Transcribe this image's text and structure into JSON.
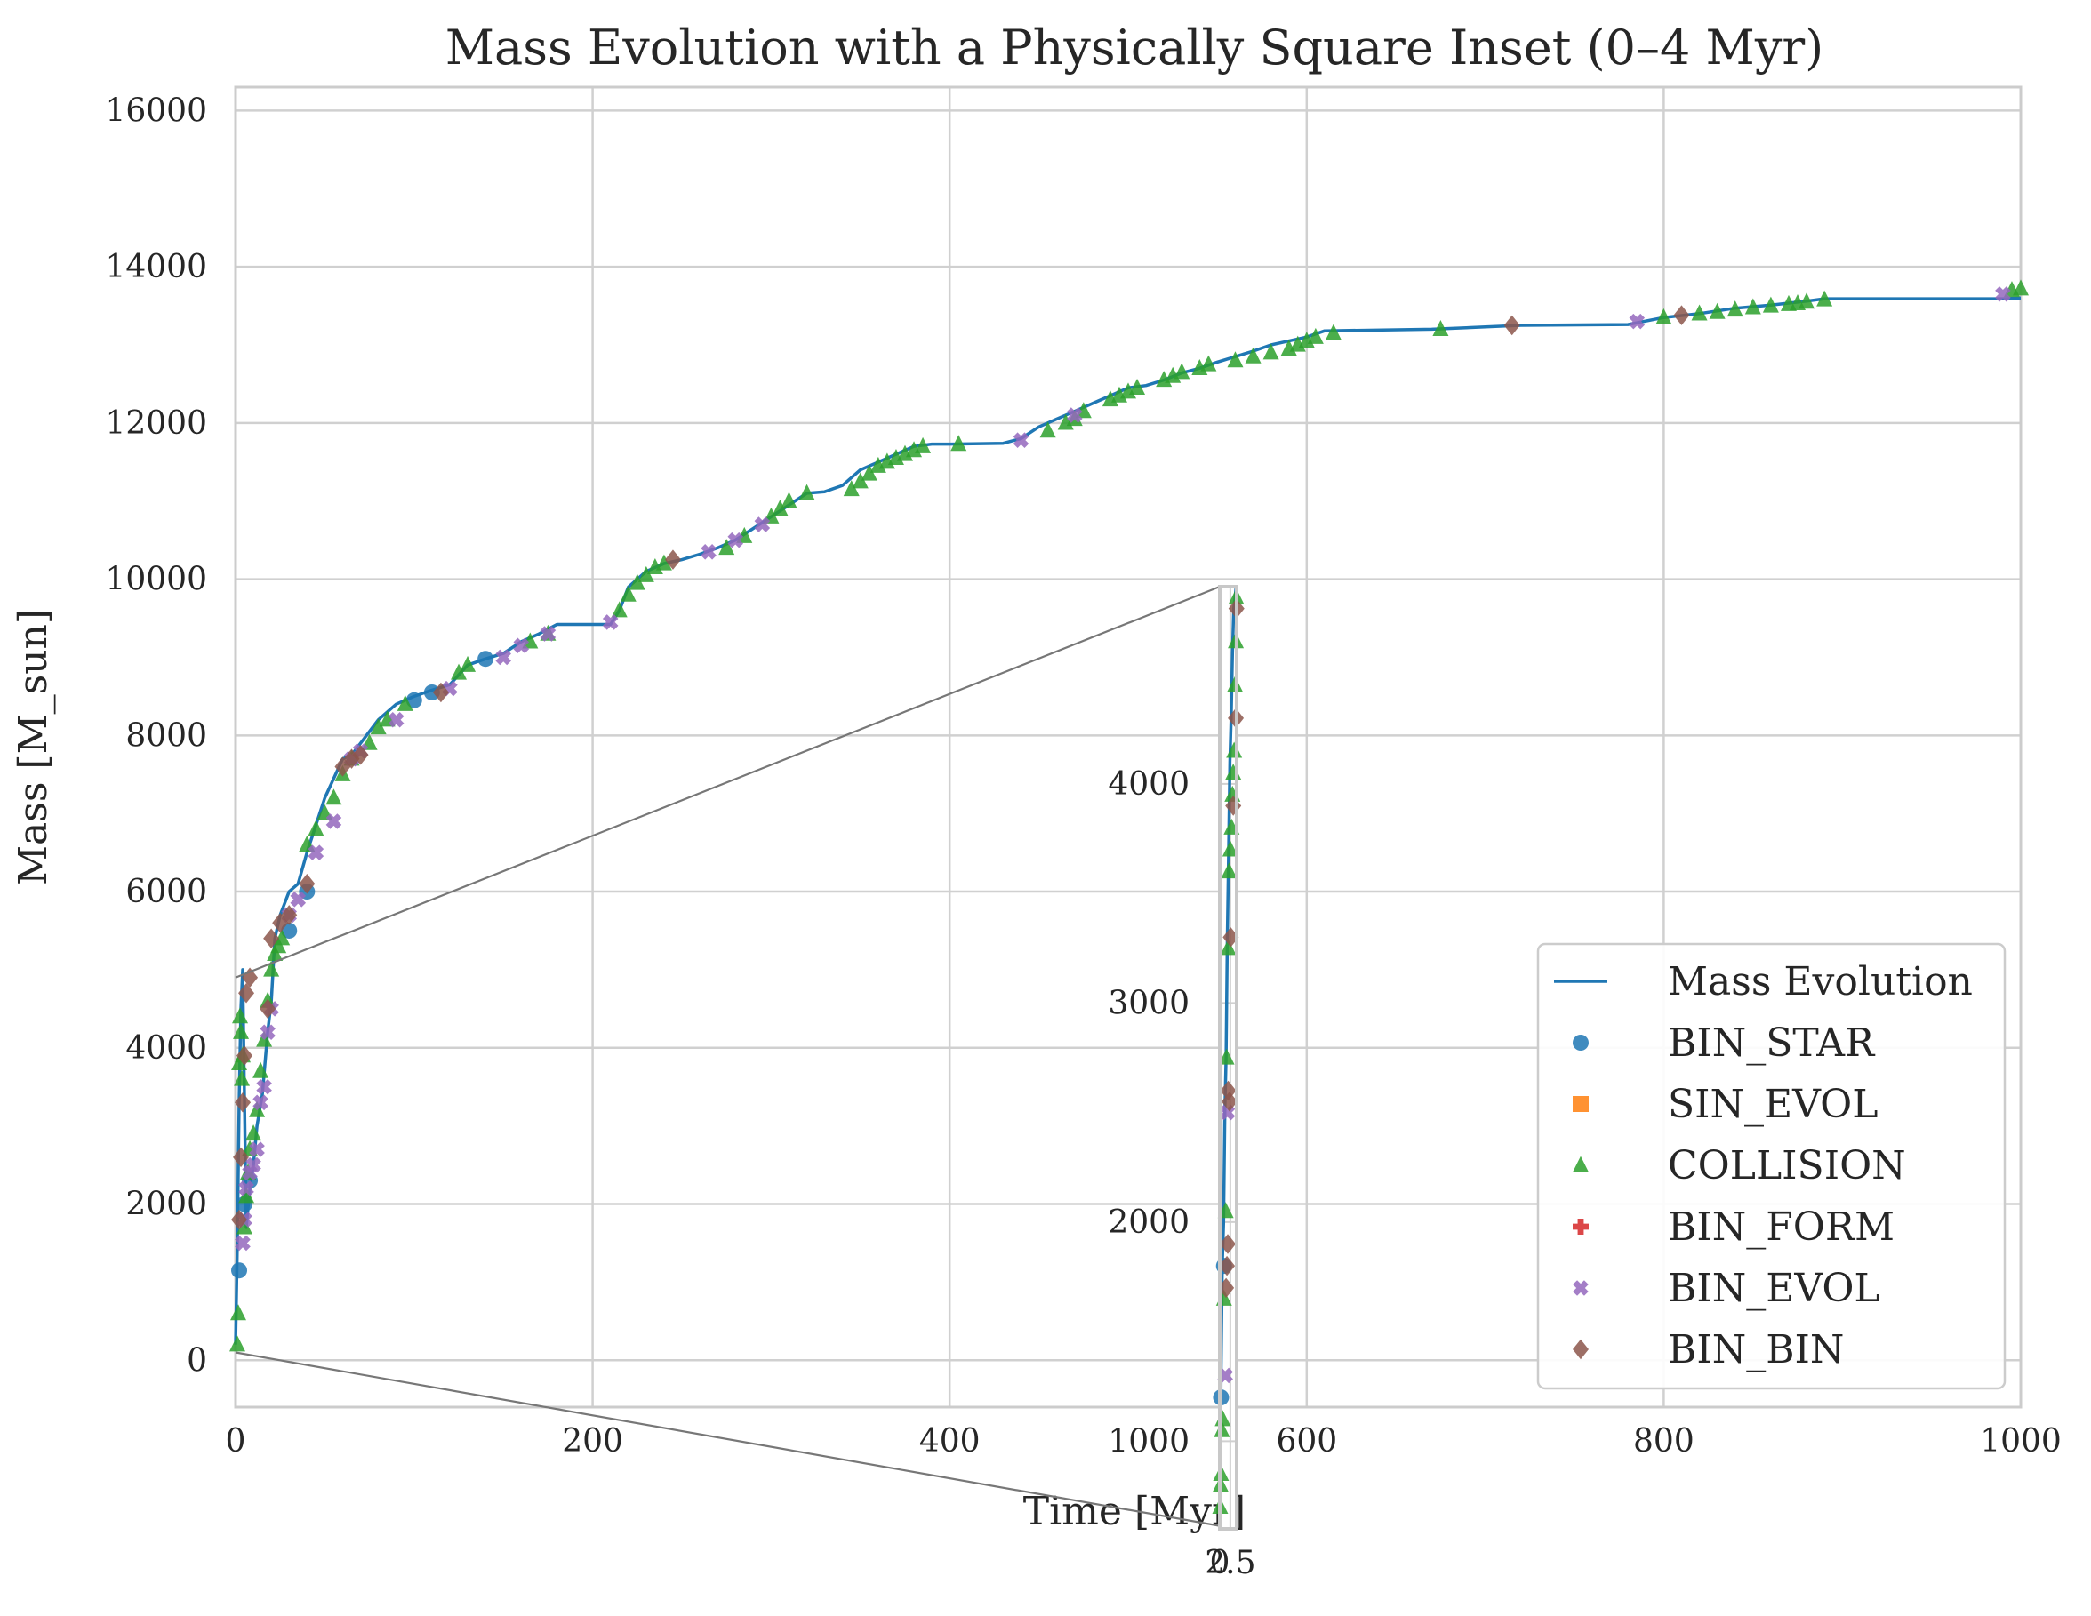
{
  "chart_data": {
    "type": "scatter",
    "title": "Mass Evolution with a Physically Square Inset (0–4 Myr)",
    "xlabel": "Time [Myr]",
    "ylabel": "Mass [M_sun]",
    "xlim": [
      0,
      1000
    ],
    "ylim": [
      -600,
      16300
    ],
    "xticks": [
      0,
      200,
      400,
      600,
      800,
      1000
    ],
    "yticks": [
      0,
      2000,
      4000,
      6000,
      8000,
      10000,
      12000,
      14000,
      16000
    ],
    "grid": true,
    "legend_position": "lower-right",
    "colors": {
      "Mass Evolution": "#1f77b4",
      "BIN_STAR": "#1f77b4",
      "SIN_EVOL": "#ff7f0e",
      "COLLISION": "#2ca02c",
      "BIN_FORM": "#d62728",
      "BIN_EVOL": "#9467bd",
      "BIN_BIN": "#8c564b"
    },
    "legend": [
      "Mass Evolution",
      "BIN_STAR",
      "SIN_EVOL",
      "COLLISION",
      "BIN_FORM",
      "BIN_EVOL",
      "BIN_BIN"
    ],
    "line": {
      "name": "Mass Evolution",
      "x": [
        0,
        1,
        2,
        3,
        4,
        6,
        8,
        10,
        12,
        15,
        18,
        20,
        22,
        25,
        30,
        35,
        40,
        50,
        60,
        65,
        70,
        80,
        90,
        100,
        110,
        120,
        130,
        140,
        150,
        160,
        170,
        180,
        210,
        215,
        220,
        230,
        240,
        250,
        260,
        270,
        280,
        290,
        300,
        310,
        320,
        330,
        340,
        350,
        360,
        370,
        380,
        390,
        400,
        430,
        440,
        450,
        460,
        470,
        480,
        490,
        500,
        510,
        520,
        530,
        540,
        550,
        560,
        570,
        580,
        590,
        600,
        610,
        670,
        720,
        780,
        800,
        820,
        840,
        860,
        880,
        890,
        990,
        1000
      ],
      "y": [
        200,
        1500,
        3300,
        4500,
        5000,
        1700,
        2200,
        2500,
        3000,
        3400,
        4200,
        4600,
        5400,
        5700,
        6000,
        6100,
        6500,
        7200,
        7700,
        7750,
        7900,
        8200,
        8400,
        8500,
        8580,
        8650,
        8900,
        8980,
        9050,
        9200,
        9300,
        9420,
        9420,
        9600,
        9900,
        10100,
        10200,
        10250,
        10320,
        10400,
        10500,
        10650,
        10800,
        10950,
        11100,
        11120,
        11200,
        11400,
        11500,
        11600,
        11700,
        11730,
        11730,
        11740,
        11800,
        11950,
        12050,
        12150,
        12250,
        12350,
        12450,
        12480,
        12550,
        12640,
        12700,
        12780,
        12850,
        12920,
        13000,
        13050,
        13100,
        13180,
        13200,
        13250,
        13260,
        13350,
        13400,
        13470,
        13510,
        13560,
        13590,
        13590,
        13600
      ]
    },
    "series": [
      {
        "name": "BIN_STAR",
        "marker": "circle",
        "x": [
          2,
          5,
          8,
          30,
          40,
          100,
          110,
          140
        ],
        "y": [
          1150,
          2000,
          2300,
          5500,
          6000,
          8450,
          8550,
          8980
        ]
      },
      {
        "name": "SIN_EVOL",
        "marker": "square",
        "x": [],
        "y": []
      },
      {
        "name": "COLLISION",
        "marker": "triangle",
        "x": [
          1,
          1.5,
          2,
          2.5,
          3,
          3.5,
          4,
          5,
          6,
          7,
          8,
          10,
          12,
          14,
          16,
          18,
          20,
          22,
          24,
          26,
          40,
          45,
          50,
          55,
          60,
          65,
          75,
          80,
          85,
          95,
          125,
          130,
          165,
          175,
          215,
          220,
          225,
          230,
          235,
          240,
          275,
          285,
          300,
          305,
          310,
          320,
          345,
          350,
          355,
          360,
          365,
          370,
          375,
          380,
          385,
          405,
          455,
          465,
          470,
          475,
          490,
          495,
          500,
          505,
          520,
          525,
          530,
          540,
          545,
          560,
          570,
          580,
          590,
          595,
          600,
          605,
          615,
          675,
          800,
          820,
          830,
          840,
          850,
          860,
          870,
          875,
          880,
          890,
          995,
          1000
        ],
        "y": [
          200,
          600,
          3800,
          4400,
          4200,
          3600,
          3900,
          1700,
          2100,
          2400,
          2700,
          2900,
          3200,
          3700,
          4100,
          4600,
          5000,
          5200,
          5300,
          5400,
          6600,
          6800,
          7000,
          7200,
          7500,
          7700,
          7900,
          8100,
          8200,
          8400,
          8800,
          8900,
          9200,
          9300,
          9600,
          9800,
          9950,
          10050,
          10150,
          10200,
          10400,
          10550,
          10800,
          10900,
          11000,
          11100,
          11150,
          11250,
          11350,
          11450,
          11500,
          11550,
          11600,
          11650,
          11700,
          11730,
          11900,
          12000,
          12050,
          12150,
          12300,
          12350,
          12400,
          12450,
          12550,
          12600,
          12650,
          12700,
          12750,
          12800,
          12850,
          12900,
          12950,
          13000,
          13050,
          13100,
          13150,
          13200,
          13350,
          13400,
          13420,
          13450,
          13480,
          13500,
          13520,
          13530,
          13550,
          13580,
          13700,
          13720
        ]
      },
      {
        "name": "BIN_FORM",
        "marker": "plus",
        "x": [],
        "y": []
      },
      {
        "name": "BIN_EVOL",
        "marker": "x",
        "x": [
          4,
          5,
          6,
          8,
          10,
          12,
          14,
          16,
          18,
          20,
          30,
          35,
          45,
          55,
          65,
          70,
          90,
          120,
          150,
          160,
          175,
          210,
          265,
          280,
          295,
          440,
          470,
          785,
          990
        ],
        "y": [
          1500,
          1800,
          2200,
          2400,
          2500,
          2700,
          3300,
          3500,
          4200,
          4500,
          5700,
          5900,
          6500,
          6900,
          7700,
          7800,
          8200,
          8600,
          9000,
          9150,
          9300,
          9450,
          10350,
          10500,
          10700,
          11780,
          12100,
          13300,
          13650
        ]
      },
      {
        "name": "BIN_BIN",
        "marker": "diamond",
        "x": [
          2,
          3,
          4,
          5,
          6,
          8,
          18,
          20,
          25,
          30,
          40,
          60,
          65,
          70,
          115,
          245,
          715,
          810
        ],
        "y": [
          1800,
          2600,
          3300,
          3900,
          4700,
          4900,
          4500,
          5400,
          5600,
          5700,
          6100,
          7600,
          7700,
          7750,
          8550,
          10250,
          13250,
          13380
        ]
      }
    ],
    "inset": {
      "xlim": [
        0,
        4
      ],
      "ylim": [
        600,
        4900
      ],
      "xticks": [
        0,
        2.5
      ],
      "xtick_labels": [
        "0",
        "2.5"
      ],
      "yticks": [
        1000,
        2000,
        3000,
        4000
      ],
      "line": {
        "x": [
          0,
          0.3,
          0.6,
          0.9,
          1.2,
          1.5,
          1.8,
          2.1,
          2.4,
          2.7,
          3.0,
          3.3,
          3.6,
          3.9,
          4.0
        ],
        "y": [
          600,
          1300,
          1800,
          2000,
          2500,
          2750,
          3300,
          3700,
          4100,
          4300,
          4600,
          4800,
          4850,
          4900,
          4900
        ]
      },
      "series": [
        {
          "name": "BIN_STAR",
          "x": [
            0.3,
            1.0
          ],
          "y": [
            1200,
            1800
          ]
        },
        {
          "name": "COLLISION",
          "x": [
            0.1,
            0.2,
            0.3,
            0.5,
            0.7,
            1.0,
            1.4,
            1.6,
            2.0,
            2.2,
            2.5,
            2.8,
            3.0,
            3.2,
            3.4,
            3.6,
            3.8,
            3.9
          ],
          "y": [
            700,
            800,
            850,
            1050,
            1100,
            1650,
            2050,
            2750,
            3250,
            3600,
            3700,
            3800,
            3950,
            4050,
            4150,
            4450,
            4650,
            4850
          ]
        },
        {
          "name": "BIN_EVOL",
          "x": [
            1.3,
            1.8
          ],
          "y": [
            1300,
            2500
          ]
        },
        {
          "name": "BIN_BIN",
          "x": [
            1.5,
            1.7,
            1.9,
            2.0,
            2.3,
            2.6,
            3.2,
            3.8,
            3.95
          ],
          "y": [
            1700,
            1800,
            1900,
            2600,
            2550,
            3300,
            3900,
            4300,
            4800
          ]
        }
      ]
    }
  }
}
